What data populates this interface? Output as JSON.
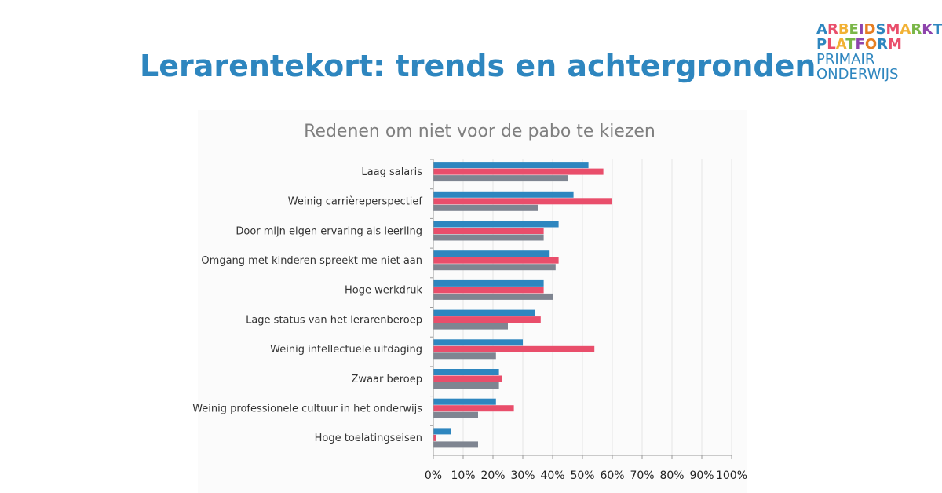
{
  "page": {
    "title": "Lerarentekort: trends en achtergronden"
  },
  "logo": {
    "line1": "ARBEIDSMARKT",
    "line2": "PLATFORM",
    "line3": "PRIMAIR",
    "line4": "ONDERWIJS",
    "colors": [
      "#2e86bf",
      "#e94e6b",
      "#f2b134",
      "#7ab648",
      "#8e44ad",
      "#e67e22",
      "#2e86bf",
      "#e94e6b",
      "#f2b134",
      "#7ab648",
      "#8e44ad",
      "#2e86bf"
    ]
  },
  "chart_data": {
    "type": "bar",
    "orientation": "horizontal",
    "title": "Redenen om niet voor de pabo te kiezen",
    "categories": [
      "Laag salaris",
      "Weinig carrièreperspectief",
      "Door mijn eigen ervaring als leerling",
      "Omgang met kinderen spreekt me niet aan",
      "Hoge werkdruk",
      "Lage status van het lerarenberoep",
      "Weinig intellectuele uitdaging",
      "Zwaar beroep",
      "Weinig professionele cultuur in het onderwijs",
      "Hoge toelatingseisen"
    ],
    "series": [
      {
        "color": "#2e86bf",
        "values": [
          52,
          47,
          42,
          39,
          37,
          34,
          30,
          22,
          21,
          6
        ]
      },
      {
        "color": "#e94e6b",
        "values": [
          57,
          60,
          37,
          42,
          37,
          36,
          54,
          23,
          27,
          1
        ]
      },
      {
        "color": "#7f8591",
        "values": [
          45,
          35,
          37,
          41,
          40,
          25,
          21,
          22,
          15,
          15
        ]
      }
    ],
    "xlim": [
      0,
      100
    ],
    "xticks": [
      "0%",
      "10%",
      "20%",
      "30%",
      "40%",
      "50%",
      "60%",
      "70%",
      "80%",
      "90%",
      "100%"
    ],
    "grid": true,
    "legend": "none"
  }
}
